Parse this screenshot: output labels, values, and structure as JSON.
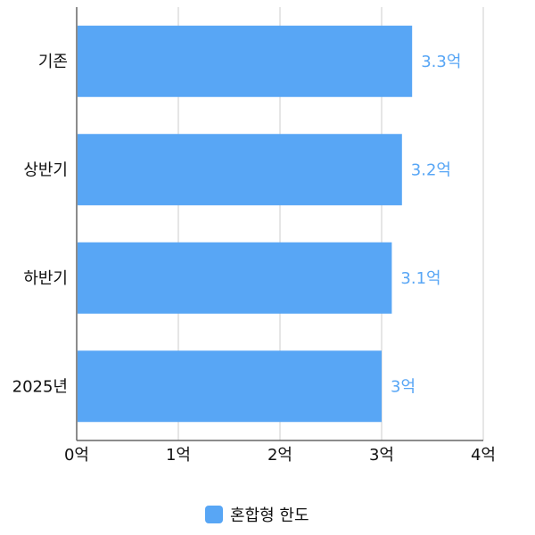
{
  "chart_data": {
    "type": "bar",
    "orientation": "horizontal",
    "categories": [
      "기존",
      "상반기",
      "하반기",
      "2025년"
    ],
    "series": [
      {
        "name": "혼합형 한도",
        "values": [
          3.3,
          3.2,
          3.1,
          3.0
        ],
        "data_labels": [
          "3.3억",
          "3.2억",
          "3.1억",
          "3억"
        ],
        "color": "#58a6f5"
      }
    ],
    "xlim": [
      0,
      4
    ],
    "x_ticks": [
      0,
      1,
      2,
      3,
      4
    ],
    "x_tick_labels": [
      "0억",
      "1억",
      "2억",
      "3억",
      "4억"
    ],
    "grid": "vertical",
    "legend": "bottom"
  },
  "colors": {
    "bar": "#58a6f5",
    "data_label": "#58a6f5",
    "grid": "#cccccc",
    "axis": "#666666"
  }
}
